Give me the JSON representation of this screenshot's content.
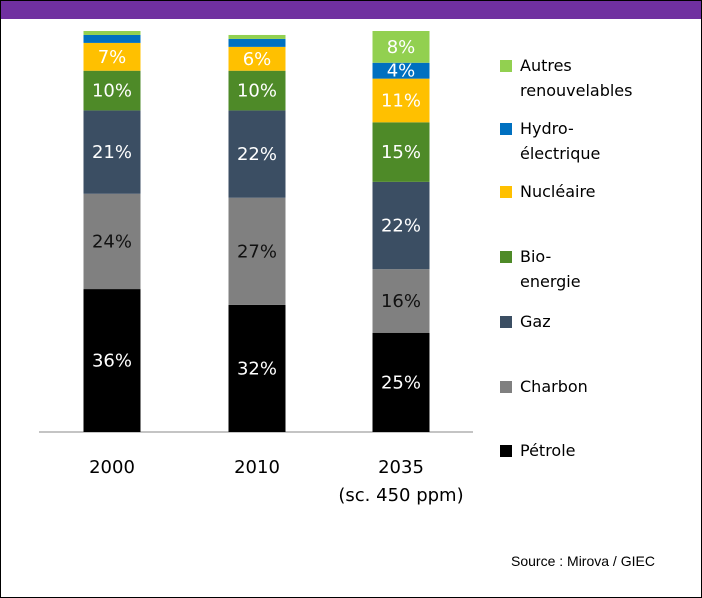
{
  "chart_data": {
    "type": "stacked_bar",
    "categories": [
      "2000",
      "2010",
      "2035\n(sc. 450 ppm)"
    ],
    "series": [
      {
        "name": "Pétrole",
        "color": "#000000",
        "values": [
          36,
          32,
          25
        ],
        "value_labels": [
          "36%",
          "32%",
          "25%"
        ]
      },
      {
        "name": "Charbon",
        "color": "#808080",
        "values": [
          24,
          27,
          16
        ],
        "value_labels": [
          "24%",
          "27%",
          "16%"
        ]
      },
      {
        "name": "Gaz",
        "color": "#3b4e63",
        "values": [
          21,
          22,
          22
        ],
        "value_labels": [
          "21%",
          "22%",
          "22%"
        ]
      },
      {
        "name": "Bio-energie",
        "color": "#4e8a28",
        "values": [
          10,
          10,
          15
        ],
        "value_labels": [
          "10%",
          "10%",
          "15%"
        ]
      },
      {
        "name": "Nucléaire",
        "color": "#ffc000",
        "values": [
          7,
          6,
          11
        ],
        "value_labels": [
          "7%",
          "6%",
          "11%"
        ]
      },
      {
        "name": "Hydro-électrique",
        "color": "#0070c0",
        "values": [
          2,
          2,
          4
        ],
        "value_labels": [
          null,
          null,
          "4%"
        ]
      },
      {
        "name": "Autres\nrenouvelables",
        "color": "#92d050",
        "values": [
          1,
          1,
          8
        ],
        "value_labels": [
          null,
          null,
          "8%"
        ]
      }
    ],
    "source": "Source : Mirova / GIEC"
  }
}
